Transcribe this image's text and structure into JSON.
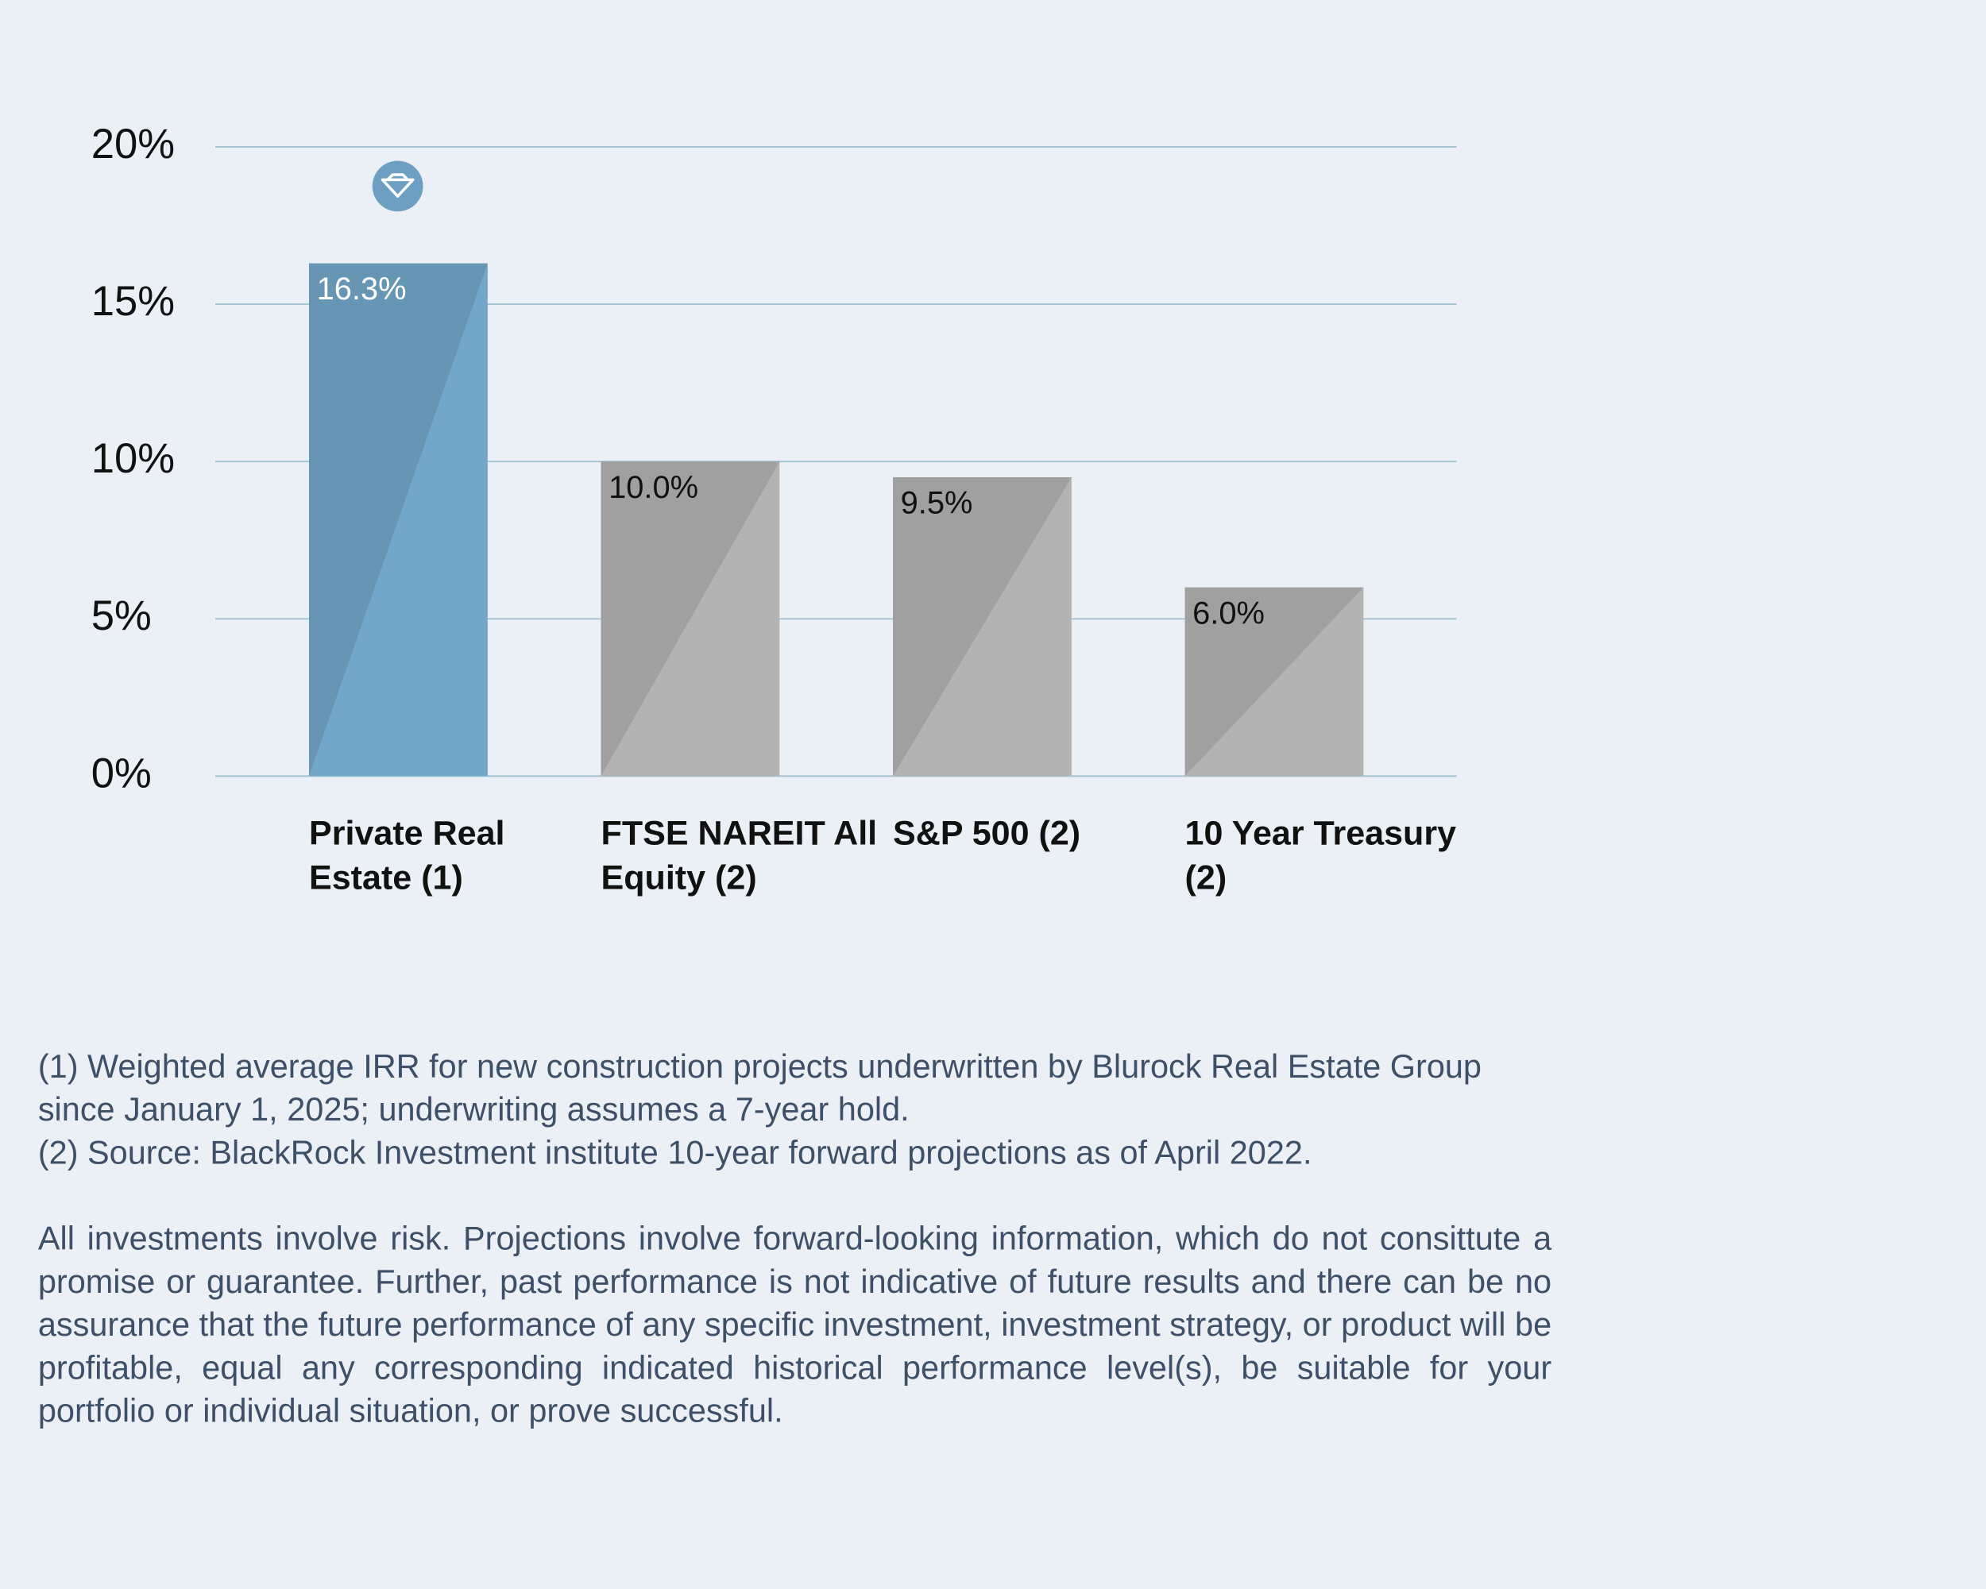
{
  "chart_data": {
    "type": "bar",
    "categories": [
      "Private Real Estate (1)",
      "FTSE NAREIT All Equity (2)",
      "S&P 500 (2)",
      "10 Year Treasury (2)"
    ],
    "values": [
      16.3,
      10.0,
      9.5,
      6.0
    ],
    "value_labels": [
      "16.3%",
      "10.0%",
      "9.5%",
      "6.0%"
    ],
    "colors": [
      "#73a7c9",
      "#b3b3b3",
      "#b3b3b3",
      "#b3b3b3"
    ],
    "ylim": [
      0,
      20
    ],
    "yticks": [
      {
        "value": 0,
        "label": "0%"
      },
      {
        "value": 5,
        "label": "5%"
      },
      {
        "value": 10,
        "label": "10%"
      },
      {
        "value": 15,
        "label": "15%"
      },
      {
        "value": 20,
        "label": "20%"
      }
    ],
    "grid": true
  },
  "notes": {
    "footnotes": [
      "(1) Weighted average IRR for new construction projects underwritten by Blurock Real Estate Group since January 1, 2025; underwriting assumes a 7-year hold.",
      "(2) Source: BlackRock Investment institute 10-year forward projections as of April 2022."
    ],
    "disclaimer": "All investments involve risk. Projections involve forward-looking information, which do not consittute a promise or guarantee. Further, past performance is not indicative of future results and there can be no assurance that the future performance of any specific investment, investment strategy, or product will be profitable, equal any corresponding indicated historical performance level(s), be suitable for your portfolio or individual situation, or prove successful."
  }
}
